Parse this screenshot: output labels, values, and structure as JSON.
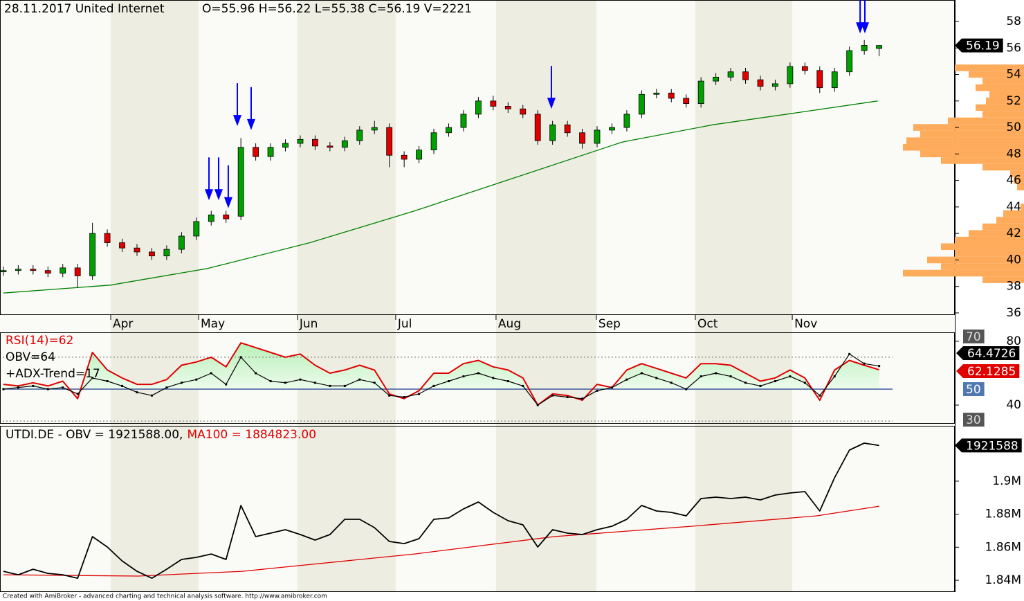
{
  "chart_data": [
    {
      "type": "candlestick",
      "title": "28.11.2017 United Internet",
      "subtitle": "O=55.96  H=56.22  L=55.38  C=56.19  V=2221",
      "x": [
        0,
        1,
        2,
        3,
        4,
        5,
        6,
        7,
        8,
        9,
        10,
        11,
        12,
        13,
        14,
        15,
        16,
        17,
        18,
        19,
        20,
        21,
        22,
        23,
        24,
        25,
        26,
        27,
        28,
        29,
        30,
        31,
        32,
        33,
        34,
        35,
        36,
        37,
        38,
        39,
        40,
        41,
        42,
        43,
        44,
        45,
        46,
        47,
        48,
        49,
        50,
        51,
        52,
        53,
        54,
        55,
        56,
        57,
        58,
        59
      ],
      "open": [
        39.1,
        39.2,
        39.3,
        39.2,
        39.0,
        39.4,
        38.8,
        42.0,
        41.3,
        40.9,
        40.6,
        40.3,
        40.8,
        41.8,
        42.9,
        43.4,
        43.3,
        48.5,
        47.8,
        48.5,
        48.8,
        49.1,
        48.6,
        48.5,
        49.0,
        49.8,
        50.0,
        47.9,
        47.6,
        48.3,
        49.6,
        50.0,
        51.0,
        52.0,
        51.6,
        51.4,
        51.0,
        49.0,
        50.2,
        49.6,
        48.8,
        49.8,
        50.0,
        51.0,
        52.5,
        52.6,
        52.2,
        51.8,
        53.5,
        53.8,
        54.2,
        53.6,
        53.1,
        53.3,
        54.6,
        54.3,
        53.0,
        54.2,
        55.8,
        55.96
      ],
      "high": [
        39.5,
        39.6,
        39.6,
        39.5,
        39.7,
        39.7,
        42.8,
        42.3,
        41.6,
        41.2,
        40.9,
        41.1,
        42.1,
        43.2,
        43.7,
        43.7,
        49.2,
        48.8,
        48.8,
        49.1,
        49.4,
        49.4,
        48.9,
        49.3,
        50.1,
        50.5,
        50.3,
        48.2,
        48.6,
        49.9,
        50.3,
        51.3,
        52.3,
        52.4,
        51.9,
        51.7,
        51.3,
        50.5,
        50.5,
        49.9,
        50.1,
        50.3,
        51.3,
        52.8,
        52.9,
        52.9,
        52.5,
        53.8,
        54.1,
        54.5,
        54.5,
        53.9,
        53.6,
        54.9,
        54.9,
        54.6,
        54.5,
        56.1,
        56.6,
        56.22
      ],
      "low": [
        38.8,
        38.9,
        38.9,
        38.7,
        38.7,
        37.9,
        38.5,
        41.0,
        40.6,
        40.3,
        40.0,
        40.0,
        40.5,
        41.5,
        42.6,
        42.8,
        43.0,
        47.5,
        47.5,
        48.2,
        48.5,
        48.3,
        48.2,
        48.2,
        48.7,
        49.5,
        47.0,
        47.0,
        47.3,
        48.0,
        49.3,
        49.7,
        50.7,
        51.3,
        51.1,
        50.7,
        48.7,
        48.7,
        49.3,
        48.4,
        48.5,
        49.5,
        49.7,
        50.7,
        52.2,
        51.9,
        51.5,
        51.5,
        53.2,
        53.5,
        53.3,
        52.8,
        52.8,
        53.0,
        54.0,
        52.6,
        52.7,
        53.9,
        55.5,
        55.38
      ],
      "close": [
        39.2,
        39.3,
        39.2,
        39.0,
        39.4,
        38.8,
        42.0,
        41.3,
        40.9,
        40.6,
        40.3,
        40.8,
        41.8,
        42.9,
        43.4,
        43.1,
        48.5,
        47.8,
        48.5,
        48.8,
        49.1,
        48.6,
        48.5,
        49.0,
        49.8,
        50.0,
        47.9,
        47.6,
        48.3,
        49.6,
        50.0,
        51.0,
        52.0,
        51.6,
        51.4,
        51.0,
        49.0,
        50.2,
        49.6,
        48.8,
        49.8,
        50.0,
        51.0,
        52.5,
        52.6,
        52.2,
        51.8,
        53.5,
        53.8,
        54.2,
        53.6,
        53.1,
        53.3,
        54.6,
        54.3,
        53.0,
        54.2,
        55.8,
        56.2,
        56.19
      ],
      "up_color": "#00a000",
      "down_color": "#e00000",
      "ma": {
        "x": [
          0,
          7.2,
          13.75,
          20.65,
          27.7,
          34.7,
          41.7,
          47.8,
          53.4,
          58.9
        ],
        "values": [
          37.5,
          38.1,
          39.35,
          41.3,
          43.7,
          46.3,
          48.9,
          50.2,
          51.1,
          52.0
        ],
        "color": "#008000"
      },
      "signals": {
        "x": [
          13.85,
          14.5,
          15.15,
          15.76,
          16.69,
          36.92,
          57.72,
          58.04
        ],
        "values": [
          44.5,
          44.5,
          43.9,
          50.1,
          49.8,
          51.4,
          57.1,
          57.1
        ],
        "color": "#0000ff"
      },
      "volume_profile": {
        "prices": [
          54.5,
          54,
          53.5,
          53,
          52.5,
          52,
          51.5,
          51,
          50.5,
          50,
          49.5,
          49,
          48.5,
          48,
          47.5,
          47,
          46.5,
          46,
          45.5,
          44,
          43.5,
          43,
          42.5,
          42,
          41.5,
          41,
          40.5,
          40,
          39.5,
          39,
          38.5
        ],
        "values": [
          100,
          80,
          60,
          70,
          50,
          55,
          70,
          60,
          110,
          160,
          150,
          170,
          175,
          150,
          120,
          60,
          20,
          15,
          10,
          5,
          30,
          40,
          60,
          80,
          100,
          120,
          100,
          140,
          120,
          175,
          60
        ],
        "color": "#ffab5c"
      },
      "xlim": [
        -0.23,
        64.1
      ],
      "xticks": [
        {
          "value": 7.23,
          "label": "Apr"
        },
        {
          "value": 13.15,
          "label": "May"
        },
        {
          "value": 19.81,
          "label": "Jun"
        },
        {
          "value": 26.43,
          "label": "Jul"
        },
        {
          "value": 33.19,
          "label": "Aug"
        },
        {
          "value": 39.95,
          "label": "Sep"
        },
        {
          "value": 46.62,
          "label": "Oct"
        },
        {
          "value": 53.15,
          "label": "Nov"
        }
      ],
      "ylim": [
        35.84,
        59.62
      ],
      "yticks": [
        36,
        38,
        40,
        42,
        44,
        46,
        48,
        50,
        52,
        54,
        56,
        58
      ]
    },
    {
      "type": "line",
      "x": [
        0,
        1,
        2,
        3,
        4,
        5,
        6,
        7,
        8,
        9,
        10,
        11,
        12,
        13,
        14,
        15,
        16,
        17,
        18,
        19,
        20,
        21,
        22,
        23,
        24,
        25,
        26,
        27,
        28,
        29,
        30,
        31,
        32,
        33,
        34,
        35,
        36,
        37,
        38,
        39,
        40,
        41,
        42,
        43,
        44,
        45,
        46,
        47,
        48,
        49,
        50,
        51,
        52,
        53,
        54,
        55,
        56,
        57,
        58,
        59
      ],
      "series": [
        {
          "name": "RSI(14)=62",
          "color": "#e00000",
          "values": [
            53,
            52,
            54,
            52,
            55,
            44,
            73,
            62,
            57,
            53,
            53,
            56,
            65,
            67,
            70,
            64,
            79,
            76,
            73,
            70,
            72,
            65,
            60,
            62,
            65,
            62,
            47,
            44,
            49,
            60,
            60,
            66,
            68,
            64,
            62,
            57,
            40,
            47,
            46,
            43,
            53,
            51,
            62,
            66,
            63,
            60,
            57,
            66,
            66,
            65,
            60,
            55,
            57,
            62,
            57,
            43,
            62,
            68,
            65,
            62.1285
          ]
        },
        {
          "name": "OBV=64",
          "color": "#000000",
          "values": [
            50,
            51,
            52,
            50,
            51,
            47,
            57,
            55,
            52,
            48,
            46,
            51,
            54,
            56,
            60,
            53,
            70,
            60,
            55,
            54,
            56,
            54,
            52,
            52,
            56,
            54,
            46,
            45,
            47,
            52,
            55,
            58,
            60,
            57,
            55,
            52,
            40,
            46,
            45,
            44,
            49,
            51,
            56,
            60,
            57,
            54,
            50,
            58,
            60,
            58,
            54,
            52,
            55,
            58,
            54,
            46,
            58,
            72,
            66,
            64.4726
          ]
        }
      ],
      "annotations": [
        "+ADX-Trend=17"
      ],
      "fill_color": "#b8f0b8",
      "levels": [
        70,
        50,
        30
      ],
      "xlim": [
        -0.23,
        64.1
      ],
      "ylim": [
        28.3,
        85.6
      ],
      "yticks": [
        80,
        40
      ]
    },
    {
      "type": "line",
      "series": [
        {
          "name": "UTDI.DE - OBV = 1921588.00,",
          "color": "#000000",
          "x": [
            0,
            1,
            2,
            3,
            4,
            5,
            6,
            7,
            8,
            9,
            10,
            11,
            12,
            13,
            14,
            15,
            16,
            17,
            18,
            19,
            20,
            21,
            22,
            23,
            24,
            25,
            26,
            27,
            28,
            29,
            30,
            31,
            32,
            33,
            34,
            35,
            36,
            37,
            38,
            39,
            40,
            41,
            42,
            43,
            44,
            45,
            46,
            47,
            48,
            49,
            50,
            51,
            52,
            53,
            54,
            55,
            56,
            57,
            58,
            59
          ],
          "values": [
            1845450,
            1843350,
            1846710,
            1844190,
            1843350,
            1841260,
            1866420,
            1860130,
            1851740,
            1845450,
            1841260,
            1846710,
            1852580,
            1853840,
            1855930,
            1852580,
            1885280,
            1866420,
            1868510,
            1870610,
            1867670,
            1864320,
            1867670,
            1876900,
            1876900,
            1871870,
            1863480,
            1862220,
            1865160,
            1876900,
            1877740,
            1883190,
            1887380,
            1881090,
            1876060,
            1873540,
            1860130,
            1870610,
            1868510,
            1867670,
            1870610,
            1872710,
            1876900,
            1885280,
            1881930,
            1881090,
            1879000,
            1889480,
            1890320,
            1889480,
            1890320,
            1888640,
            1891570,
            1892830,
            1893670,
            1881930,
            1902060,
            1918830,
            1923020,
            1921588
          ]
        },
        {
          "name": "MA100 = 1884823.00",
          "color": "#e00000",
          "x": [
            0,
            9.1,
            16.1,
            27.7,
            37.1,
            46.4,
            54.8,
            59
          ],
          "values": [
            1843350,
            1842520,
            1845450,
            1855930,
            1866420,
            1872710,
            1879000,
            1884823
          ]
        }
      ],
      "xlim": [
        -0.23,
        64.1
      ],
      "ylim": [
        1832900,
        1933500
      ],
      "yticks": [
        {
          "value": 1840000,
          "label": "1.84M"
        },
        {
          "value": 1860000,
          "label": "1.86M"
        },
        {
          "value": 1880000,
          "label": "1.88M"
        },
        {
          "value": 1900000,
          "label": "1.9M"
        }
      ]
    }
  ],
  "footer": "Created with AmiBroker - advanced charting and technical analysis software. http://www.amibroker.com"
}
